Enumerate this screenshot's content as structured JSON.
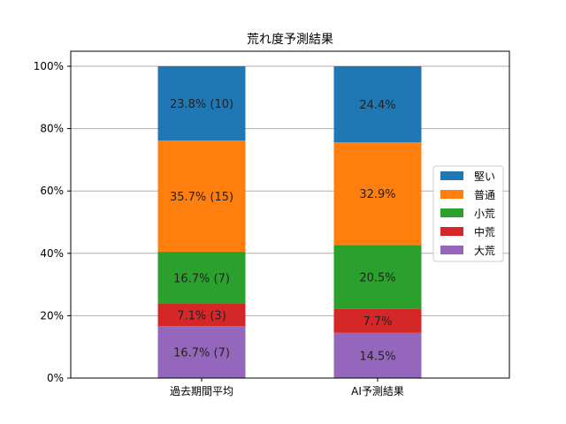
{
  "chart_data": {
    "type": "bar",
    "stacked": true,
    "title": "荒れ度予測結果",
    "xlabel": "",
    "ylabel": "",
    "ylim": [
      0,
      100
    ],
    "yticks": [
      "0%",
      "20%",
      "40%",
      "60%",
      "80%",
      "100%"
    ],
    "grid": "y",
    "legend_position": "right",
    "categories": [
      "過去期間平均",
      "AI予測結果"
    ],
    "series": [
      {
        "name": "大荒",
        "color": "#9467bd",
        "values": [
          16.7,
          14.5
        ],
        "labels": [
          "16.7% (7)",
          "14.5%"
        ]
      },
      {
        "name": "中荒",
        "color": "#d62728",
        "values": [
          7.1,
          7.7
        ],
        "labels": [
          "7.1% (3)",
          "7.7%"
        ]
      },
      {
        "name": "小荒",
        "color": "#2ca02c",
        "values": [
          16.7,
          20.5
        ],
        "labels": [
          "16.7% (7)",
          "20.5%"
        ]
      },
      {
        "name": "普通",
        "color": "#ff7f0e",
        "values": [
          35.7,
          32.9
        ],
        "labels": [
          "35.7% (15)",
          "32.9%"
        ]
      },
      {
        "name": "堅い",
        "color": "#1f77b4",
        "values": [
          23.8,
          24.4
        ],
        "labels": [
          "23.8% (10)",
          "24.4%"
        ]
      }
    ],
    "legend_order": [
      "堅い",
      "普通",
      "小荒",
      "中荒",
      "大荒"
    ]
  }
}
